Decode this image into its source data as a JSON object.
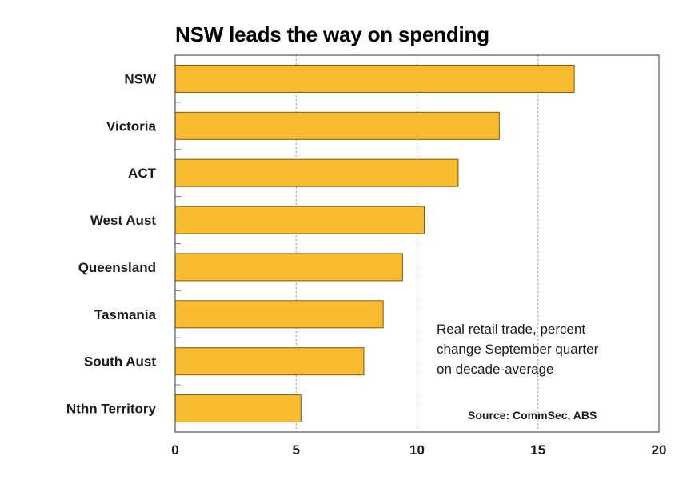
{
  "chart_data": {
    "type": "bar",
    "orientation": "horizontal",
    "title": "NSW leads the way on spending",
    "categories": [
      "NSW",
      "Victoria",
      "ACT",
      "West Aust",
      "Queensland",
      "Tasmania",
      "South Aust",
      "Nthn Territory"
    ],
    "values": [
      16.5,
      13.4,
      11.7,
      10.3,
      9.4,
      8.6,
      7.8,
      5.2
    ],
    "xlim": [
      0,
      20
    ],
    "xticks": [
      "0",
      "5",
      "10",
      "15",
      "20"
    ],
    "xtick_values": [
      0,
      5,
      10,
      15,
      20
    ],
    "grid": "vertical dotted",
    "bar_color": "#f9bc2e",
    "note_lines": [
      "Real retail trade, percent",
      "change September quarter",
      "on decade-average"
    ],
    "source": "Source: CommSec, ABS"
  }
}
